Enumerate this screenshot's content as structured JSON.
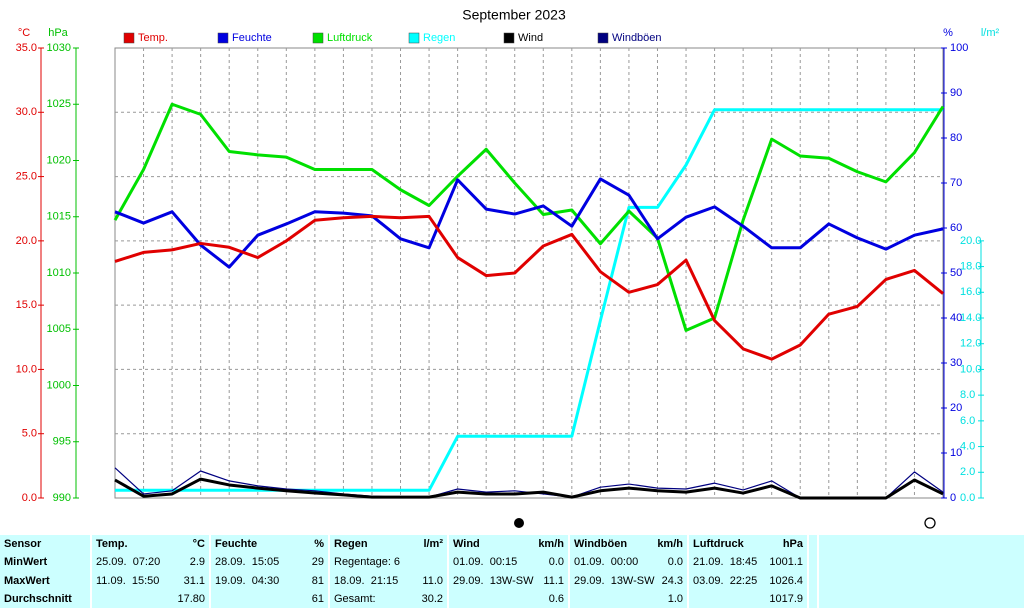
{
  "chart_data": {
    "type": "line",
    "title": "September 2023",
    "x": [
      1,
      2,
      3,
      4,
      5,
      6,
      7,
      8,
      9,
      10,
      11,
      12,
      13,
      14,
      15,
      16,
      17,
      18,
      19,
      20,
      21,
      22,
      23,
      24,
      25,
      26,
      27,
      28,
      29,
      30
    ],
    "xlim": [
      1,
      30
    ],
    "grid": true,
    "y_axes": [
      {
        "label": "°C",
        "color": "#e00000",
        "ylim": [
          0,
          35
        ],
        "yticks": [
          {
            "value": 0,
            "label": "0.0"
          },
          {
            "value": 5,
            "label": "5.0"
          },
          {
            "value": 10,
            "label": "10.0"
          },
          {
            "value": 15,
            "label": "15.0"
          },
          {
            "value": 20,
            "label": "20.0"
          },
          {
            "value": 25,
            "label": "25.0"
          },
          {
            "value": 30,
            "label": "30.0"
          },
          {
            "value": 35,
            "label": "35.0"
          }
        ]
      },
      {
        "label": "hPa",
        "color": "#00c000",
        "ylim": [
          990,
          1030
        ],
        "yticks": [
          990,
          995,
          1000,
          1005,
          1010,
          1015,
          1020,
          1025,
          1030
        ]
      },
      {
        "label": "%",
        "color": "#0000e0",
        "ylim": [
          0,
          100
        ],
        "yticks": [
          0,
          10,
          20,
          30,
          40,
          50,
          60,
          70,
          80,
          90,
          100
        ]
      },
      {
        "label": "l/m²",
        "color": "#00e0e0",
        "ylim": [
          0,
          35
        ],
        "yticks": [
          {
            "value": 0,
            "label": "0.0"
          },
          {
            "value": 2,
            "label": "2.0"
          },
          {
            "value": 4,
            "label": "4.0"
          },
          {
            "value": 6,
            "label": "6.0"
          },
          {
            "value": 8,
            "label": "8.0"
          },
          {
            "value": 10,
            "label": "10.0"
          },
          {
            "value": 12,
            "label": "12.0"
          },
          {
            "value": 14,
            "label": "14.0"
          },
          {
            "value": 16,
            "label": "16.0"
          },
          {
            "value": 18,
            "label": "18.0"
          },
          {
            "value": 20,
            "label": "20.0"
          }
        ]
      }
    ],
    "series": [
      {
        "name": "Temp.",
        "color": "#e00000",
        "axis": 0,
        "values": [
          18.4,
          19.1,
          19.3,
          19.8,
          19.5,
          18.7,
          20.0,
          21.6,
          21.8,
          21.9,
          21.8,
          21.9,
          18.7,
          17.3,
          17.5,
          19.6,
          20.5,
          17.6,
          16.0,
          16.6,
          18.5,
          13.8,
          11.6,
          10.8,
          11.9,
          14.3,
          14.9,
          17.0,
          17.7,
          15.9
        ]
      },
      {
        "name": "Feuchte",
        "color": "#0000e0",
        "axis": 2,
        "values": [
          63.6,
          61.1,
          63.6,
          56.2,
          51.3,
          58.4,
          60.9,
          63.6,
          63.3,
          62.7,
          57.6,
          55.6,
          70.7,
          64.2,
          63.1,
          64.9,
          60.4,
          70.9,
          67.3,
          57.6,
          62.4,
          64.7,
          60.4,
          55.6,
          55.6,
          60.9,
          57.8,
          55.3,
          58.4,
          59.8
        ]
      },
      {
        "name": "Luftdruck",
        "color": "#00e000",
        "axis": 1,
        "values": [
          1014.7,
          1019.2,
          1025.0,
          1024.1,
          1020.8,
          1020.5,
          1020.3,
          1019.2,
          1019.2,
          1019.2,
          1017.4,
          1016.0,
          1018.6,
          1021.0,
          1018.0,
          1015.2,
          1015.6,
          1012.6,
          1015.5,
          1013.1,
          1004.9,
          1006.0,
          1014.7,
          1021.9,
          1020.4,
          1020.2,
          1019.0,
          1018.1,
          1020.7,
          1024.8
        ]
      },
      {
        "name": "Regen",
        "color": "#00ffff",
        "axis": 3,
        "values": [
          0.6,
          0.6,
          0.6,
          0.6,
          0.6,
          0.6,
          0.6,
          0.6,
          0.6,
          0.6,
          0.6,
          0.6,
          4.8,
          4.8,
          4.8,
          4.8,
          4.8,
          13.8,
          22.6,
          22.6,
          25.9,
          30.2,
          30.2,
          30.2,
          30.2,
          30.2,
          30.2,
          30.2,
          30.2,
          30.2
        ]
      },
      {
        "name": "Wind",
        "color": "#000000",
        "axis": 2,
        "values": [
          4.0,
          0.4,
          0.9,
          4.2,
          2.9,
          2.2,
          1.6,
          1.1,
          0.7,
          0.2,
          0.2,
          0.2,
          1.3,
          0.9,
          0.9,
          1.3,
          0.2,
          1.6,
          2.2,
          1.6,
          1.3,
          2.2,
          1.1,
          2.7,
          0,
          0,
          0,
          0,
          4.0,
          0.9
        ]
      },
      {
        "name": "Windböen",
        "color": "#000080",
        "axis": 2,
        "values": [
          6.7,
          0.9,
          1.6,
          6.0,
          3.8,
          2.7,
          2.0,
          1.6,
          0.9,
          0.4,
          0.2,
          0.2,
          2.0,
          1.3,
          1.6,
          0.9,
          0.2,
          2.4,
          3.1,
          2.2,
          2.0,
          3.3,
          1.8,
          3.8,
          0,
          0,
          0,
          0,
          5.8,
          1.3
        ]
      }
    ]
  },
  "stats": {
    "row_labels": [
      "Sensor",
      "MinWert",
      "MaxWert",
      "Durchschnitt"
    ],
    "columns": [
      {
        "title": "Temp.",
        "unit": "°C",
        "rows": [
          [
            "25.09.  07:20",
            "2.9"
          ],
          [
            "11.09.  15:50",
            "31.1"
          ],
          [
            null,
            "17.80"
          ]
        ]
      },
      {
        "title": "Feuchte",
        "unit": "%",
        "rows": [
          [
            "28.09.  15:05",
            "29"
          ],
          [
            "19.09.  04:30",
            "81"
          ],
          [
            null,
            "61"
          ]
        ]
      },
      {
        "title": "Regen",
        "unit": "l/m²",
        "rows": [
          [
            "Regentage: 6",
            null
          ],
          [
            "18.09.  21:15",
            "11.0"
          ],
          [
            "Gesamt:",
            "30.2"
          ]
        ]
      },
      {
        "title": "Wind",
        "unit": "km/h",
        "rows": [
          [
            "01.09.  00:15",
            "0.0"
          ],
          [
            "29.09.  13W-SW",
            "11.1"
          ],
          [
            null,
            "0.6"
          ]
        ]
      },
      {
        "title": "Windböen",
        "unit": "km/h",
        "rows": [
          [
            "01.09.  00:00",
            "0.0"
          ],
          [
            "29.09.  13W-SW",
            "24.3"
          ],
          [
            null,
            "1.0"
          ]
        ]
      },
      {
        "title": "Luftdruck",
        "unit": "hPa",
        "rows": [
          [
            "21.09.  18:45",
            "1001.1"
          ],
          [
            "03.09.  22:25",
            "1026.4"
          ],
          [
            null,
            "1017.9"
          ]
        ]
      }
    ]
  }
}
